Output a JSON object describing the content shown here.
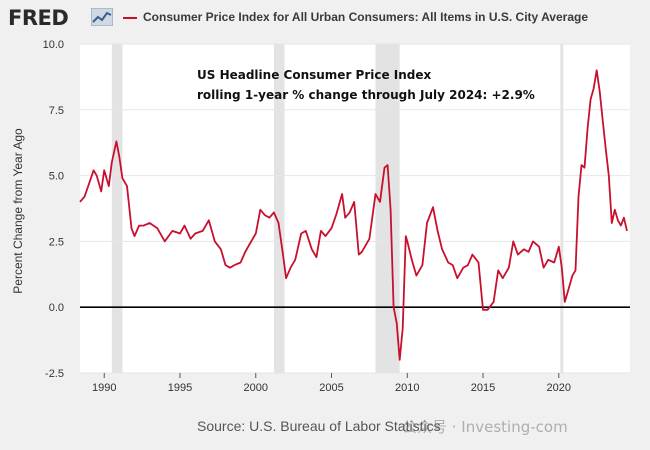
{
  "header": {
    "logo_text": "FRED",
    "legend_label": "Consumer Price Index for All Urban Consumers: All Items in U.S. City Average"
  },
  "footer": {
    "source": "Source: U.S. Bureau of Labor Statistics",
    "watermark": "公众号 · Investing-com"
  },
  "colors": {
    "series": "#c8102e",
    "recession": "#e3e3e3",
    "zero_line": "#000000"
  },
  "chart_data": {
    "type": "line",
    "annotation": [
      "US Headline Consumer Price Index",
      "rolling 1-year % change through July 2024: +2.9%"
    ],
    "ylabel": "Percent Change from Year Ago",
    "xlim": [
      1988.4,
      2024.7
    ],
    "ylim": [
      -2.5,
      10.0
    ],
    "yticks": [
      -2.5,
      0.0,
      2.5,
      5.0,
      7.5,
      10.0
    ],
    "ytick_labels": [
      "-2.5",
      "0.0",
      "2.5",
      "5.0",
      "7.5",
      "10.0"
    ],
    "xticks": [
      1990,
      1995,
      2000,
      2005,
      2010,
      2015,
      2020
    ],
    "xtick_labels": [
      "1990",
      "1995",
      "2000",
      "2005",
      "2010",
      "2015",
      "2020"
    ],
    "recessions": [
      [
        1990.5,
        1991.2
      ],
      [
        2001.2,
        2001.9
      ],
      [
        2007.9,
        2009.5
      ],
      [
        2020.1,
        2020.3
      ]
    ],
    "series": [
      {
        "color": "#c8102e",
        "x": [
          1988.4,
          1988.7,
          1989.0,
          1989.3,
          1989.5,
          1989.8,
          1990.0,
          1990.3,
          1990.5,
          1990.8,
          1991.0,
          1991.2,
          1991.5,
          1991.8,
          1992.0,
          1992.3,
          1992.6,
          1993.0,
          1993.5,
          1994.0,
          1994.5,
          1995.0,
          1995.3,
          1995.7,
          1996.0,
          1996.5,
          1996.9,
          1997.3,
          1997.7,
          1998.0,
          1998.3,
          1998.6,
          1999.0,
          1999.3,
          1999.6,
          2000.0,
          2000.3,
          2000.6,
          2000.9,
          2001.2,
          2001.5,
          2001.8,
          2002.0,
          2002.3,
          2002.6,
          2003.0,
          2003.3,
          2003.7,
          2004.0,
          2004.3,
          2004.6,
          2005.0,
          2005.3,
          2005.7,
          2005.9,
          2006.2,
          2006.5,
          2006.8,
          2007.0,
          2007.5,
          2007.9,
          2008.2,
          2008.5,
          2008.7,
          2008.9,
          2009.1,
          2009.3,
          2009.5,
          2009.7,
          2009.9,
          2010.0,
          2010.3,
          2010.6,
          2011.0,
          2011.3,
          2011.7,
          2012.0,
          2012.3,
          2012.7,
          2013.0,
          2013.3,
          2013.7,
          2014.0,
          2014.3,
          2014.7,
          2015.0,
          2015.3,
          2015.7,
          2016.0,
          2016.3,
          2016.7,
          2017.0,
          2017.3,
          2017.7,
          2018.0,
          2018.3,
          2018.7,
          2019.0,
          2019.3,
          2019.7,
          2020.0,
          2020.2,
          2020.4,
          2020.6,
          2020.9,
          2021.1,
          2021.3,
          2021.5,
          2021.7,
          2021.9,
          2022.1,
          2022.3,
          2022.5,
          2022.7,
          2022.9,
          2023.1,
          2023.3,
          2023.5,
          2023.7,
          2023.9,
          2024.1,
          2024.3,
          2024.5
        ],
        "y": [
          4.0,
          4.2,
          4.7,
          5.2,
          5.0,
          4.4,
          5.2,
          4.6,
          5.5,
          6.3,
          5.7,
          4.9,
          4.6,
          3.0,
          2.7,
          3.1,
          3.1,
          3.2,
          3.0,
          2.5,
          2.9,
          2.8,
          3.1,
          2.6,
          2.8,
          2.9,
          3.3,
          2.5,
          2.2,
          1.6,
          1.5,
          1.6,
          1.7,
          2.1,
          2.4,
          2.8,
          3.7,
          3.5,
          3.4,
          3.6,
          3.2,
          2.0,
          1.1,
          1.5,
          1.8,
          2.8,
          2.9,
          2.2,
          1.9,
          2.9,
          2.7,
          3.0,
          3.5,
          4.3,
          3.4,
          3.6,
          4.0,
          2.0,
          2.1,
          2.6,
          4.3,
          4.0,
          5.3,
          5.4,
          3.7,
          0.0,
          -0.6,
          -2.0,
          -0.8,
          2.7,
          2.5,
          1.8,
          1.2,
          1.6,
          3.2,
          3.8,
          2.9,
          2.2,
          1.7,
          1.6,
          1.1,
          1.5,
          1.6,
          2.0,
          1.7,
          -0.1,
          -0.1,
          0.2,
          1.4,
          1.1,
          1.5,
          2.5,
          2.0,
          2.2,
          2.1,
          2.5,
          2.3,
          1.5,
          1.8,
          1.7,
          2.3,
          1.5,
          0.2,
          0.6,
          1.2,
          1.4,
          4.2,
          5.4,
          5.3,
          6.8,
          7.9,
          8.3,
          9.0,
          8.2,
          7.1,
          6.0,
          5.0,
          3.2,
          3.7,
          3.3,
          3.1,
          3.4,
          2.9
        ]
      }
    ]
  }
}
